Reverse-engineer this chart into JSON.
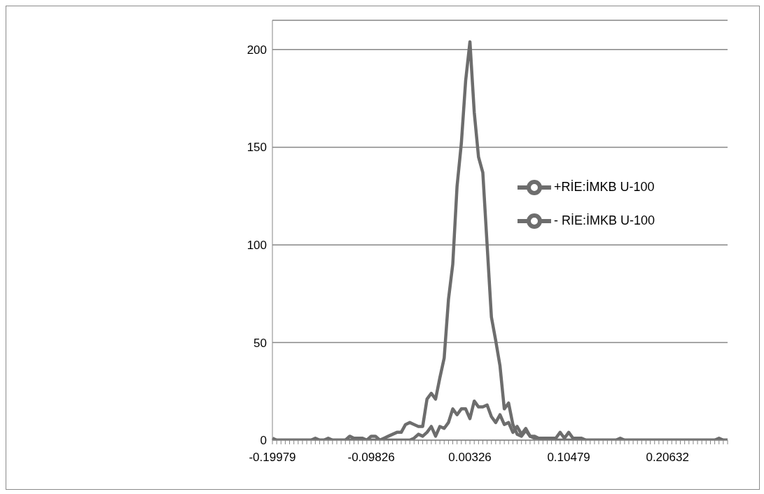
{
  "chart_data": {
    "type": "line",
    "categories": [
      "-0.19979",
      null,
      null,
      null,
      null,
      null,
      null,
      null,
      null,
      null,
      null,
      null,
      null,
      null,
      null,
      null,
      null,
      null,
      null,
      null,
      null,
      null,
      null,
      "-0.09826",
      null,
      null,
      null,
      null,
      null,
      null,
      null,
      null,
      null,
      null,
      null,
      null,
      null,
      null,
      null,
      null,
      null,
      null,
      null,
      null,
      null,
      null,
      "0.00326",
      null,
      null,
      null,
      null,
      null,
      null,
      null,
      null,
      null,
      null,
      null,
      null,
      null,
      null,
      null,
      null,
      null,
      null,
      null,
      null,
      null,
      null,
      "0.10479",
      null,
      null,
      null,
      null,
      null,
      null,
      null,
      null,
      null,
      null,
      null,
      null,
      null,
      null,
      null,
      null,
      null,
      null,
      null,
      null,
      null,
      null,
      "0.20632",
      null,
      null,
      null,
      null,
      null,
      null,
      null,
      null,
      null,
      null,
      null,
      null,
      null,
      null
    ],
    "series": [
      {
        "name": "+RİE:İMKB U-100",
        "color": "#6d6d6d",
        "values": [
          1,
          0,
          0,
          0,
          0,
          0,
          0,
          0,
          0,
          0,
          1,
          0,
          0,
          1,
          0,
          0,
          0,
          0,
          2,
          1,
          1,
          1,
          0,
          2,
          2,
          0,
          1,
          2,
          3,
          4,
          4,
          8,
          9,
          8,
          7,
          7,
          21,
          24,
          21,
          32,
          42,
          72,
          90,
          130,
          152,
          184,
          204,
          168,
          145,
          137,
          100,
          63,
          51,
          38,
          16,
          19,
          8,
          3,
          2,
          5,
          2,
          1,
          1,
          0,
          0,
          0,
          0,
          0,
          0,
          0,
          0,
          0,
          0,
          0,
          0,
          0,
          0,
          0,
          0,
          0,
          0,
          1,
          0,
          0,
          0,
          0,
          0,
          0,
          0,
          0,
          0,
          0,
          0,
          0,
          0,
          0,
          0,
          0,
          0,
          0,
          0,
          0,
          0,
          0,
          1,
          0,
          0
        ]
      },
      {
        "name": "- RİE:İMKB U-100",
        "color": "#6d6d6d",
        "values": [
          0,
          0,
          0,
          0,
          0,
          0,
          0,
          0,
          0,
          0,
          0,
          0,
          0,
          0,
          0,
          0,
          0,
          0,
          0,
          0,
          0,
          0,
          0,
          0,
          0,
          0,
          0,
          0,
          0,
          0,
          0,
          0,
          0,
          1,
          3,
          2,
          4,
          7,
          2,
          7,
          6,
          9,
          16,
          13,
          16,
          16,
          11,
          20,
          17,
          17,
          18,
          12,
          9,
          13,
          8,
          9,
          4,
          7,
          3,
          6,
          2,
          2,
          1,
          1,
          1,
          1,
          1,
          4,
          1,
          4,
          1,
          1,
          1,
          0,
          0,
          0,
          0,
          0,
          0,
          0,
          0,
          0,
          0,
          0,
          0,
          0,
          0,
          0,
          0,
          0,
          0,
          0,
          0,
          0,
          0,
          0,
          0,
          0,
          0,
          0,
          0,
          0,
          0,
          0,
          0,
          0,
          0
        ]
      }
    ],
    "ylim": [
      0,
      215
    ],
    "yticks": [
      0,
      50,
      100,
      150,
      200
    ],
    "grid": "y",
    "legend": "right",
    "marker": "none",
    "line_style": "solid"
  }
}
